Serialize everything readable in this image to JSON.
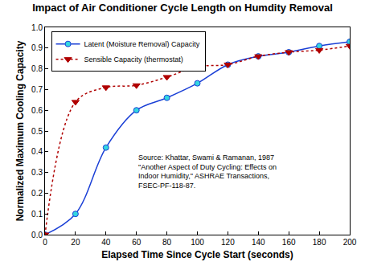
{
  "chart_data": {
    "type": "line",
    "title": "Impact of Air Conditioner Cycle Length on Humdity Removal",
    "x_label": "Elapsed Time Since Cycle Start (seconds)",
    "y_label": "Normalized Maximum Cooling Capacity",
    "x": [
      0,
      20,
      40,
      60,
      80,
      100,
      120,
      140,
      160,
      180,
      200
    ],
    "series": [
      {
        "name": "Latent (Moisture Removal) Capacity",
        "color": "#1a3fd6",
        "marker": "circle",
        "line_style": "solid",
        "values": [
          0.0,
          0.1,
          0.42,
          0.6,
          0.66,
          0.73,
          0.82,
          0.86,
          0.88,
          0.91,
          0.93
        ]
      },
      {
        "name": "Sensible Capacity (thermostat)",
        "color": "#b00000",
        "marker": "triangle-down",
        "line_style": "dot",
        "values": [
          0.0,
          0.64,
          0.71,
          0.72,
          0.76,
          0.81,
          0.82,
          0.86,
          0.88,
          0.89,
          0.91
        ]
      }
    ],
    "xlim": [
      0,
      200
    ],
    "xticks": [
      0,
      20,
      40,
      60,
      80,
      100,
      120,
      140,
      160,
      180,
      200
    ],
    "ylim": [
      0,
      1
    ],
    "yticks": [
      {
        "value": 0,
        "label": "0.0"
      },
      0.1,
      0.2,
      0.3,
      0.4,
      0.5,
      0.6,
      0.7,
      0.8,
      0.9,
      {
        "value": 1,
        "label": "1.0"
      }
    ],
    "grid": false,
    "legend": "upper left",
    "annotations": [
      "Source: Khattar, Swami & Ramanan, 1987",
      "\"Another Aspect of Duty Cycling: Effects on",
      "Indoor Humidity,\" ASHRAE Transactions,",
      "FSEC-PF-118-87."
    ]
  }
}
